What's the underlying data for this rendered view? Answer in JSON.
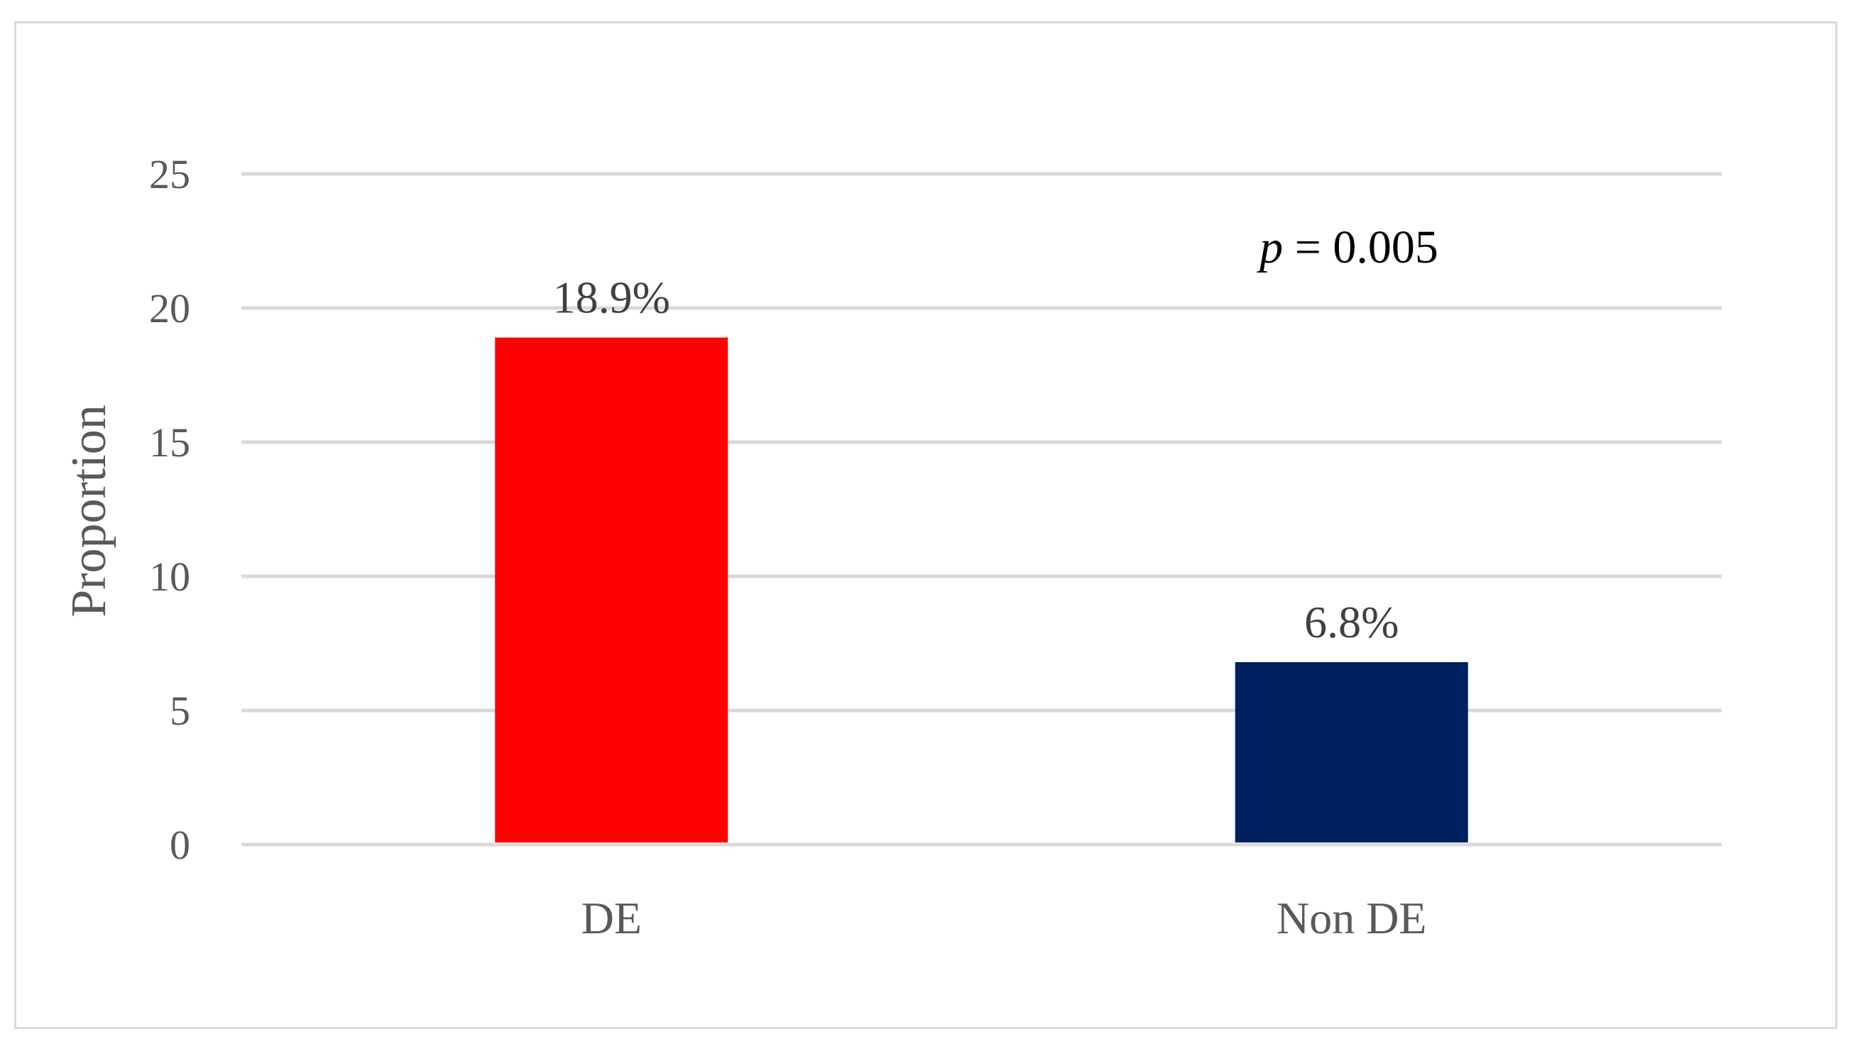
{
  "chart_data": {
    "type": "bar",
    "categories": [
      "DE",
      "Non DE"
    ],
    "values": [
      18.9,
      6.8
    ],
    "data_labels": [
      "18.9%",
      "6.8%"
    ],
    "colors": [
      "#ff0000",
      "#002060"
    ],
    "title": "",
    "xlabel": "",
    "ylabel": "Proportion",
    "ylim": [
      0,
      25
    ],
    "yticks": [
      0,
      5,
      10,
      15,
      20,
      25
    ],
    "grid": true,
    "annotation": {
      "italic": "p",
      "text": " = 0.005"
    }
  }
}
